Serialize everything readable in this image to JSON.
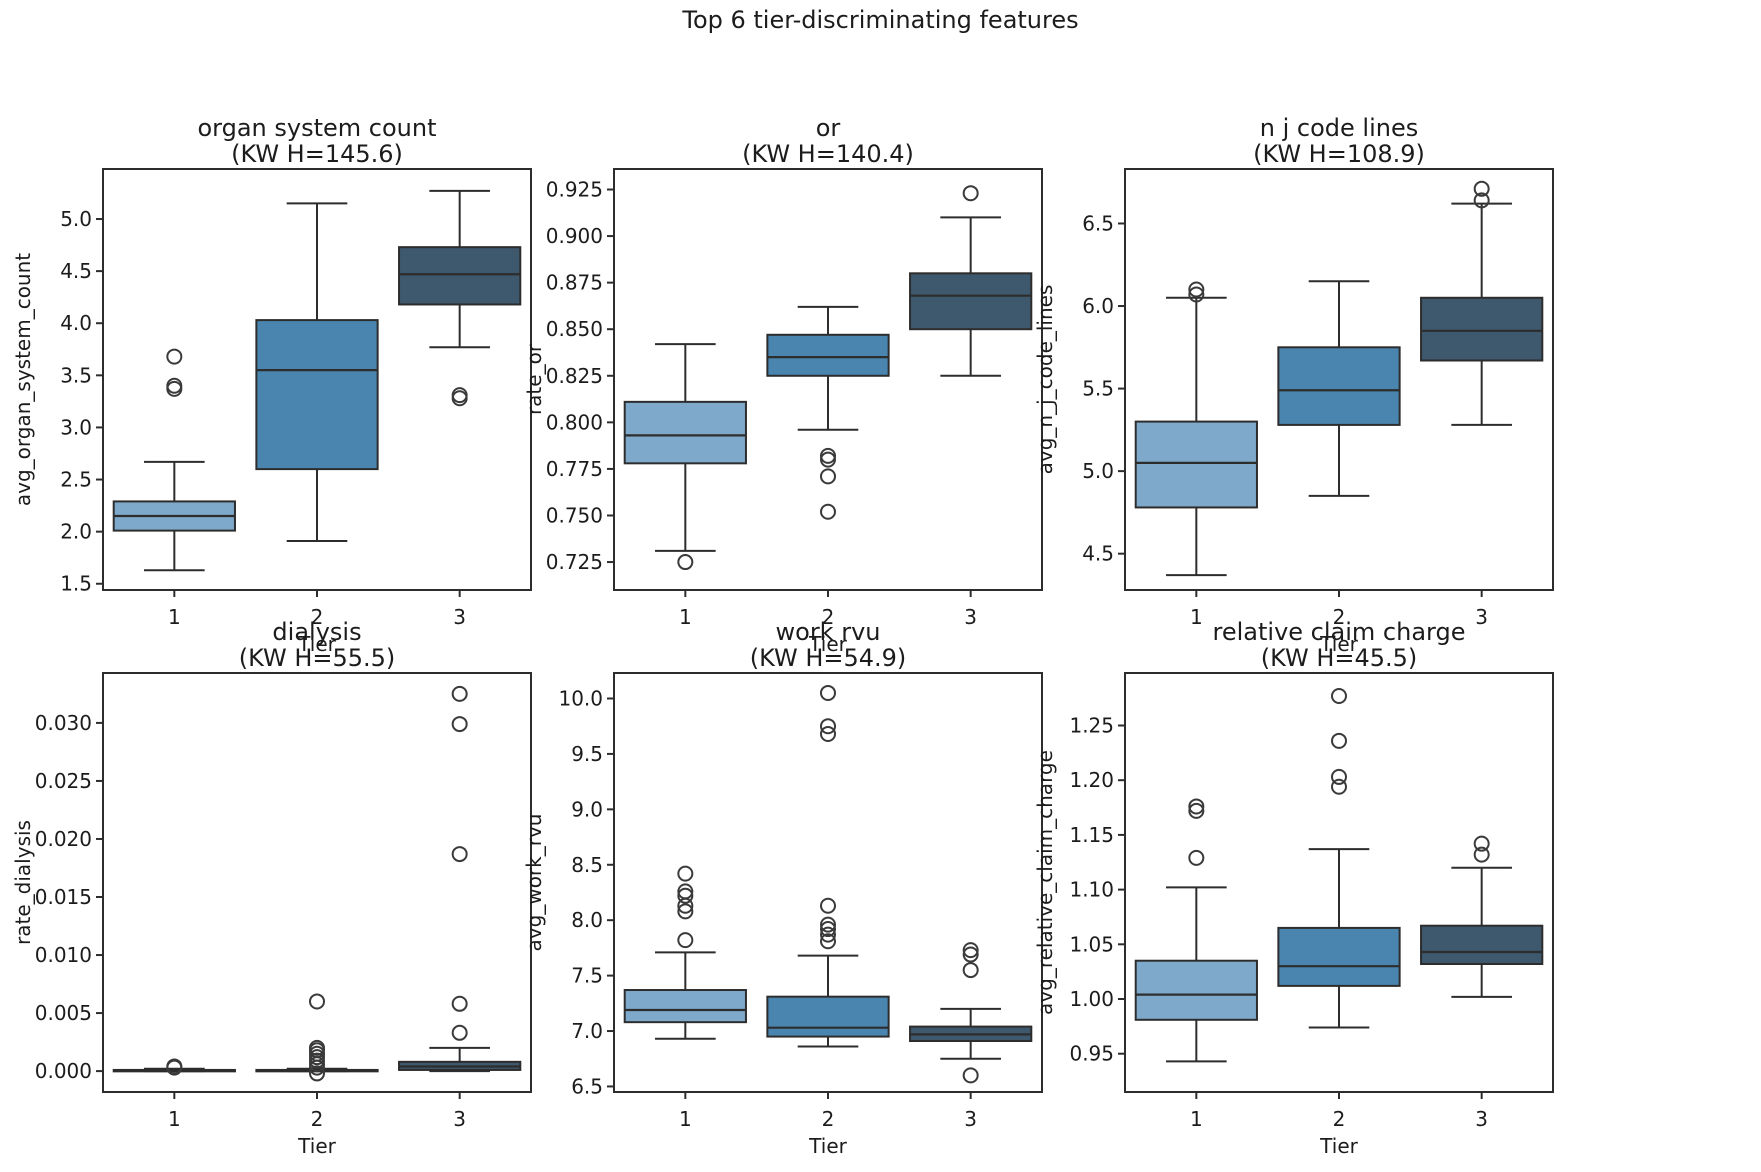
{
  "figure": {
    "title": "Top 6 tier-discriminating features",
    "background": "#ffffff"
  },
  "palette": {
    "tier_colors": [
      "#7ea9ca",
      "#4a85af",
      "#3e586d"
    ],
    "line_color": "#2d2d2d",
    "text_color": "#1c1c1c"
  },
  "chart_data": [
    {
      "type": "box",
      "title": "organ system count",
      "subtitle": "(KW H=145.6)",
      "ylabel": "avg_organ_system_count",
      "xlabel": "Tier",
      "categories": [
        "1",
        "2",
        "3"
      ],
      "yticks": [
        1.5,
        2.0,
        2.5,
        3.0,
        3.5,
        4.0,
        4.5,
        5.0
      ],
      "ytick_decimals": 1,
      "ylim": [
        1.44,
        5.48
      ],
      "boxes": [
        {
          "tier": "1",
          "whislo": 1.63,
          "q1": 2.01,
          "med": 2.15,
          "q3": 2.29,
          "whishi": 2.67,
          "fliers": [
            3.37,
            3.4,
            3.68
          ]
        },
        {
          "tier": "2",
          "whislo": 1.91,
          "q1": 2.6,
          "med": 3.55,
          "q3": 4.03,
          "whishi": 5.15,
          "fliers": []
        },
        {
          "tier": "3",
          "whislo": 3.77,
          "q1": 4.18,
          "med": 4.47,
          "q3": 4.73,
          "whishi": 5.27,
          "fliers": [
            3.28,
            3.31
          ]
        }
      ]
    },
    {
      "type": "box",
      "title": "or",
      "subtitle": "(KW H=140.4)",
      "ylabel": "rate_or",
      "xlabel": "Tier",
      "categories": [
        "1",
        "2",
        "3"
      ],
      "yticks": [
        0.725,
        0.75,
        0.775,
        0.8,
        0.825,
        0.85,
        0.875,
        0.9,
        0.925
      ],
      "ytick_decimals": 3,
      "ylim": [
        0.71,
        0.936
      ],
      "boxes": [
        {
          "tier": "1",
          "whislo": 0.731,
          "q1": 0.778,
          "med": 0.793,
          "q3": 0.811,
          "whishi": 0.842,
          "fliers": [
            0.725
          ]
        },
        {
          "tier": "2",
          "whislo": 0.796,
          "q1": 0.825,
          "med": 0.835,
          "q3": 0.847,
          "whishi": 0.862,
          "fliers": [
            0.752,
            0.771,
            0.78,
            0.782
          ]
        },
        {
          "tier": "3",
          "whislo": 0.825,
          "q1": 0.85,
          "med": 0.868,
          "q3": 0.88,
          "whishi": 0.91,
          "fliers": [
            0.923
          ]
        }
      ]
    },
    {
      "type": "box",
      "title": "n j code lines",
      "subtitle": "(KW H=108.9)",
      "ylabel": "avg_n_j_code_lines",
      "xlabel": "Tier",
      "categories": [
        "1",
        "2",
        "3"
      ],
      "yticks": [
        4.5,
        5.0,
        5.5,
        6.0,
        6.5
      ],
      "ytick_decimals": 1,
      "ylim": [
        4.28,
        6.83
      ],
      "boxes": [
        {
          "tier": "1",
          "whislo": 4.37,
          "q1": 4.78,
          "med": 5.05,
          "q3": 5.3,
          "whishi": 6.05,
          "fliers": [
            6.07,
            6.1
          ]
        },
        {
          "tier": "2",
          "whislo": 4.85,
          "q1": 5.28,
          "med": 5.49,
          "q3": 5.75,
          "whishi": 6.15,
          "fliers": []
        },
        {
          "tier": "3",
          "whislo": 5.28,
          "q1": 5.67,
          "med": 5.85,
          "q3": 6.05,
          "whishi": 6.62,
          "fliers": [
            6.64,
            6.71
          ]
        }
      ]
    },
    {
      "type": "box",
      "title": "dialysis",
      "subtitle": "(KW H=55.5)",
      "ylabel": "rate_dialysis",
      "xlabel": "Tier",
      "categories": [
        "1",
        "2",
        "3"
      ],
      "yticks": [
        0.0,
        0.005,
        0.01,
        0.015,
        0.02,
        0.025,
        0.03
      ],
      "ytick_decimals": 3,
      "ylim": [
        -0.0018,
        0.0343
      ],
      "boxes": [
        {
          "tier": "1",
          "whislo": 0.0,
          "q1": 0.0,
          "med": 5e-05,
          "q3": 0.0001,
          "whishi": 0.0002,
          "fliers": [
            0.0003,
            0.0004
          ]
        },
        {
          "tier": "2",
          "whislo": 0.0,
          "q1": 0.0,
          "med": 5e-05,
          "q3": 0.0001,
          "whishi": 0.0002,
          "fliers": [
            -0.0002,
            0.0003,
            0.0006,
            0.0009,
            0.0012,
            0.0015,
            0.0018,
            0.002,
            0.006
          ]
        },
        {
          "tier": "3",
          "whislo": 0.0,
          "q1": 0.0001,
          "med": 0.0004,
          "q3": 0.0008,
          "whishi": 0.002,
          "fliers": [
            0.0033,
            0.0058,
            0.0187,
            0.0299,
            0.0325
          ]
        }
      ]
    },
    {
      "type": "box",
      "title": "work rvu",
      "subtitle": "(KW H=54.9)",
      "ylabel": "avg_work_rvu",
      "xlabel": "Tier",
      "categories": [
        "1",
        "2",
        "3"
      ],
      "yticks": [
        6.5,
        7.0,
        7.5,
        8.0,
        8.5,
        9.0,
        9.5,
        10.0
      ],
      "ytick_decimals": 1,
      "ylim": [
        6.45,
        10.23
      ],
      "boxes": [
        {
          "tier": "1",
          "whislo": 6.93,
          "q1": 7.08,
          "med": 7.19,
          "q3": 7.37,
          "whishi": 7.71,
          "fliers": [
            7.82,
            8.08,
            8.13,
            8.22,
            8.26,
            8.42
          ]
        },
        {
          "tier": "2",
          "whislo": 6.86,
          "q1": 6.95,
          "med": 7.03,
          "q3": 7.31,
          "whishi": 7.68,
          "fliers": [
            7.81,
            7.87,
            7.92,
            7.96,
            8.13,
            9.68,
            9.75,
            10.05
          ]
        },
        {
          "tier": "3",
          "whislo": 6.75,
          "q1": 6.91,
          "med": 6.97,
          "q3": 7.04,
          "whishi": 7.2,
          "fliers": [
            6.6,
            7.55,
            7.69,
            7.73
          ]
        }
      ]
    },
    {
      "type": "box",
      "title": "relative claim charge",
      "subtitle": "(KW H=45.5)",
      "ylabel": "avg_relative_claim_charge",
      "xlabel": "Tier",
      "categories": [
        "1",
        "2",
        "3"
      ],
      "yticks": [
        0.95,
        1.0,
        1.05,
        1.1,
        1.15,
        1.2,
        1.25
      ],
      "ytick_decimals": 2,
      "ylim": [
        0.915,
        1.298
      ],
      "boxes": [
        {
          "tier": "1",
          "whislo": 0.943,
          "q1": 0.981,
          "med": 1.004,
          "q3": 1.035,
          "whishi": 1.102,
          "fliers": [
            1.129,
            1.172,
            1.176
          ]
        },
        {
          "tier": "2",
          "whislo": 0.974,
          "q1": 1.012,
          "med": 1.03,
          "q3": 1.065,
          "whishi": 1.137,
          "fliers": [
            1.194,
            1.203,
            1.236,
            1.277
          ]
        },
        {
          "tier": "3",
          "whislo": 1.002,
          "q1": 1.032,
          "med": 1.043,
          "q3": 1.067,
          "whishi": 1.12,
          "fliers": [
            1.132,
            1.142
          ]
        }
      ]
    }
  ]
}
